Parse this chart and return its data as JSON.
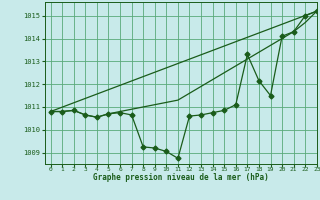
{
  "title": "Graphe pression niveau de la mer (hPa)",
  "bg_color": "#c8eaea",
  "grid_color": "#5aaa7a",
  "line_color": "#1a5c1a",
  "xlim": [
    -0.5,
    23
  ],
  "ylim": [
    1008.5,
    1015.6
  ],
  "yticks": [
    1009,
    1010,
    1011,
    1012,
    1013,
    1014,
    1015
  ],
  "xticks": [
    0,
    1,
    2,
    3,
    4,
    5,
    6,
    7,
    8,
    9,
    10,
    11,
    12,
    13,
    14,
    15,
    16,
    17,
    18,
    19,
    20,
    21,
    22,
    23
  ],
  "series_main": {
    "x": [
      0,
      1,
      2,
      3,
      4,
      5,
      6,
      7,
      8,
      9,
      10,
      11,
      12,
      13,
      14,
      15,
      16,
      17,
      18,
      19,
      20,
      21,
      22,
      23
    ],
    "y": [
      1010.8,
      1010.8,
      1010.85,
      1010.65,
      1010.55,
      1010.7,
      1010.75,
      1010.65,
      1009.25,
      1009.2,
      1009.05,
      1008.75,
      1010.6,
      1010.65,
      1010.75,
      1010.85,
      1011.1,
      1013.3,
      1012.15,
      1011.5,
      1014.1,
      1014.3,
      1015.0,
      1015.2
    ]
  },
  "series_upper": {
    "x": [
      0,
      23
    ],
    "y": [
      1010.8,
      1015.2
    ]
  },
  "series_mid": {
    "x": [
      0,
      1,
      2,
      3,
      4,
      5,
      11,
      12,
      13,
      14,
      15,
      16,
      21,
      22,
      23
    ],
    "y": [
      1010.8,
      1010.8,
      1010.85,
      1010.65,
      1010.55,
      1010.7,
      1011.3,
      1011.6,
      1011.9,
      1012.2,
      1012.5,
      1012.8,
      1014.3,
      1014.7,
      1015.2
    ]
  }
}
